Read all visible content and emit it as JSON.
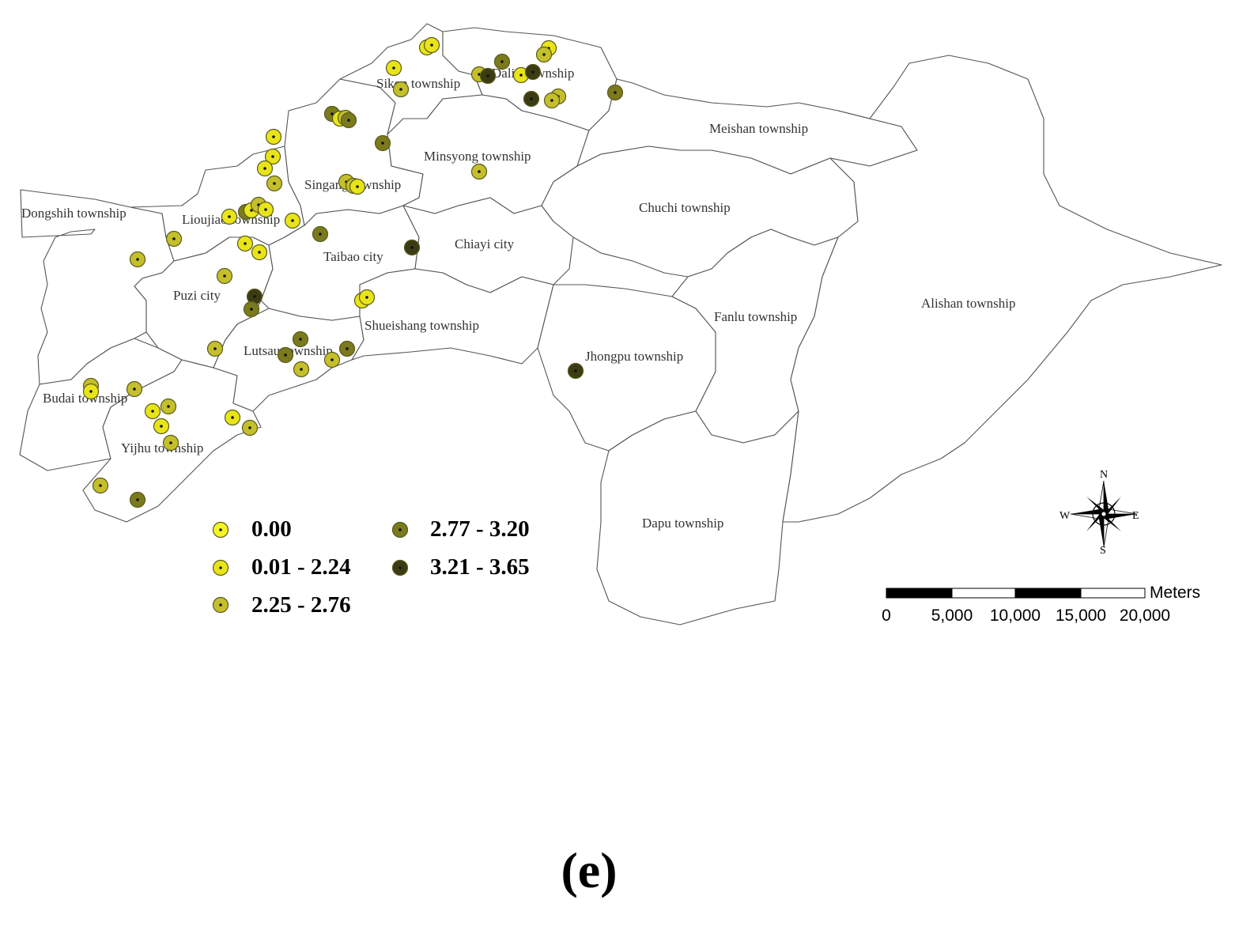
{
  "map": {
    "places": [
      "Sikon township",
      "Dalin township",
      "Meishan township",
      "Minsyong township",
      "Singang township",
      "Chuchi township",
      "Dongshih township",
      "Lioujiao township",
      "Chiayi city",
      "Taibao city",
      "Puzi city",
      "Alishan township",
      "Fanlu township",
      "Shueishang township",
      "Lutsau township",
      "Jhongpu township",
      "Budai township",
      "Yijhu township",
      "Dapu township"
    ]
  },
  "legend": {
    "classes": [
      {
        "label": "0.00",
        "color": "#f5f523"
      },
      {
        "label": "0.01 - 2.24",
        "color": "#e9e419"
      },
      {
        "label": "2.25 - 2.76",
        "color": "#c4bf2b"
      },
      {
        "label": "2.77 - 3.20",
        "color": "#7b7a1c"
      },
      {
        "label": "3.21 - 3.65",
        "color": "#3c3c14"
      }
    ]
  },
  "scale_bar": {
    "unit": "Meters",
    "ticks": [
      "0",
      "5,000",
      "10,000",
      "15,000",
      "20,000"
    ]
  },
  "compass": {
    "n": "N",
    "s": "S",
    "e": "E",
    "w": "W"
  },
  "caption": "(e)"
}
